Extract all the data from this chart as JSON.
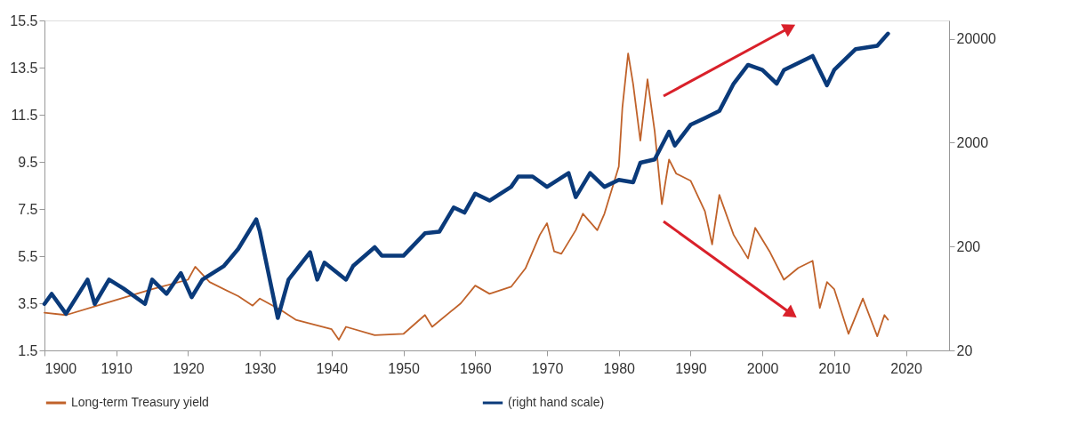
{
  "chart_data": {
    "type": "line",
    "xlim": [
      1900,
      2026
    ],
    "xticks": [
      1900,
      1910,
      1920,
      1930,
      1940,
      1950,
      1960,
      1970,
      1980,
      1990,
      2000,
      2010,
      2020
    ],
    "ylim": [
      1.5,
      15.5
    ],
    "yticks": [
      1.5,
      3.5,
      5.5,
      7.5,
      9.5,
      11.5,
      13.5,
      15.5
    ],
    "y2lim": [
      20,
      30000
    ],
    "y2ticks": [
      20,
      200,
      2000,
      20000
    ],
    "log": "y2",
    "grid": false,
    "legend": "bottom",
    "marker": "none",
    "line_style": "solid",
    "series": [
      {
        "name": "Long-term Treasury yield",
        "color": "#c0622a",
        "x": [
          1900,
          1903,
          1908,
          1915,
          1920,
          1921,
          1923,
          1927,
          1929,
          1930,
          1933,
          1935,
          1940,
          1941,
          1942,
          1946,
          1950,
          1953,
          1954,
          1958,
          1960,
          1962,
          1965,
          1967,
          1969,
          1970,
          1971,
          1972,
          1974,
          1975,
          1977,
          1978,
          1980,
          1980.5,
          1981.3,
          1982,
          1983,
          1984,
          1985,
          1986,
          1987,
          1988,
          1990,
          1992,
          1993,
          1994,
          1996,
          1998,
          1999,
          2001,
          2003,
          2005,
          2007,
          2008,
          2009,
          2010,
          2012,
          2014,
          2016,
          2017,
          2017.5
        ],
        "values": [
          3.1,
          3.0,
          3.46,
          4.1,
          4.5,
          5.05,
          4.4,
          3.8,
          3.4,
          3.7,
          3.2,
          2.8,
          2.4,
          1.95,
          2.5,
          2.15,
          2.2,
          3.0,
          2.5,
          3.5,
          4.25,
          3.9,
          4.2,
          4.98,
          6.4,
          6.9,
          5.7,
          5.6,
          6.6,
          7.3,
          6.6,
          7.3,
          9.3,
          11.8,
          14.1,
          12.8,
          10.4,
          13.0,
          10.8,
          7.7,
          9.6,
          9.0,
          8.7,
          7.4,
          6.0,
          8.1,
          6.4,
          5.4,
          6.7,
          5.7,
          4.5,
          5.0,
          5.3,
          3.3,
          4.4,
          4.1,
          2.2,
          3.7,
          2.1,
          3.0,
          2.8
        ]
      },
      {
        "name": "(right hand scale)",
        "color": "#0a3a7a",
        "axis": "y2",
        "x": [
          1900,
          1901,
          1903,
          1906,
          1907,
          1909,
          1911,
          1914,
          1915,
          1917,
          1919,
          1920.5,
          1922,
          1925,
          1927,
          1929.5,
          1930,
          1932.5,
          1934,
          1937,
          1938,
          1939,
          1942,
          1943,
          1946,
          1947,
          1950,
          1953,
          1955,
          1957,
          1958.5,
          1960,
          1962,
          1965,
          1966,
          1968,
          1970,
          1973,
          1974,
          1976,
          1978,
          1980,
          1982,
          1983,
          1985,
          1987,
          1987.8,
          1990,
          1992,
          1994,
          1996,
          1998,
          2000,
          2002,
          2003,
          2007,
          2009,
          2010,
          2013,
          2016,
          2017.5
        ],
        "values": [
          56,
          70,
          45,
          96,
          56,
          96,
          79,
          56,
          96,
          70,
          111,
          65,
          96,
          130,
          190,
          365,
          278,
          41,
          96,
          176,
          96,
          140,
          96,
          130,
          197,
          163,
          163,
          268,
          278,
          475,
          424,
          646,
          553,
          750,
          944,
          944,
          750,
          1020,
          597,
          1020,
          750,
          875,
          830,
          1280,
          1380,
          2550,
          1875,
          2970,
          3450,
          4030,
          7400,
          11200,
          10000,
          7400,
          10000,
          13650,
          7130,
          10000,
          15900,
          17100,
          22400
        ]
      }
    ]
  }
}
